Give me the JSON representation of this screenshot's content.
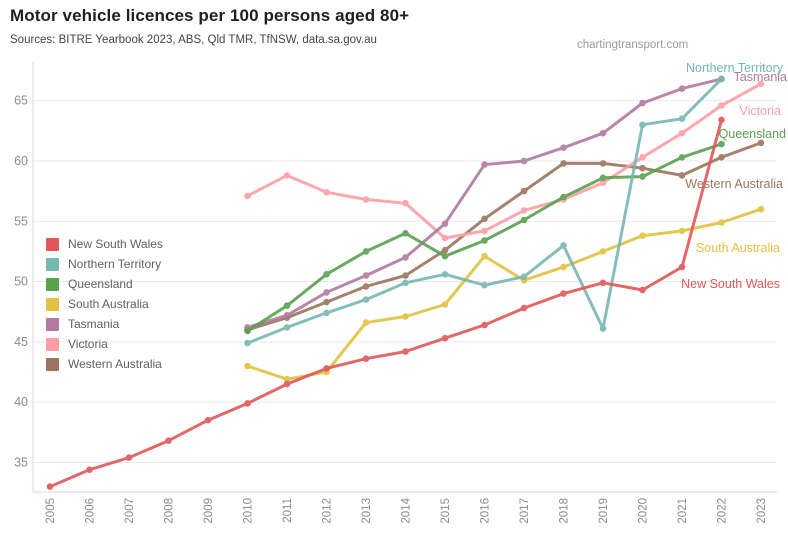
{
  "header": {
    "title": "Motor vehicle licences per 100 persons aged 80+",
    "subtitle": "Sources: BITRE Yearbook 2023, ABS, Qld TMR, TfNSW, data.sa.gov.au",
    "watermark": "chartingtransport.com"
  },
  "chart_data": {
    "type": "line",
    "title": "Motor vehicle licences per 100 persons aged 80+",
    "xlabel": "",
    "ylabel": "",
    "x_ticks": [
      2005,
      2006,
      2007,
      2008,
      2009,
      2010,
      2011,
      2012,
      2013,
      2014,
      2015,
      2016,
      2017,
      2018,
      2019,
      2020,
      2021,
      2022,
      2023
    ],
    "y_ticks": [
      35,
      40,
      45,
      50,
      55,
      60,
      65
    ],
    "xlim": [
      2005,
      2023
    ],
    "ylim": [
      32.5,
      67.2
    ],
    "grid": "horizontal",
    "legend_position": "center-left",
    "marker": "circle",
    "series": [
      {
        "name": "New South Wales",
        "color": "#e15759",
        "years": [
          2005,
          2006,
          2007,
          2008,
          2009,
          2010,
          2011,
          2012,
          2013,
          2014,
          2015,
          2016,
          2017,
          2018,
          2019,
          2020,
          2021,
          2022
        ],
        "values": [
          33.0,
          34.4,
          35.4,
          36.8,
          38.5,
          39.9,
          41.5,
          42.8,
          43.6,
          44.2,
          45.3,
          46.4,
          47.8,
          49.0,
          49.9,
          49.3,
          51.2,
          63.4
        ]
      },
      {
        "name": "Northern Territory",
        "color": "#76b7b2",
        "years": [
          2010,
          2011,
          2012,
          2013,
          2014,
          2015,
          2016,
          2017,
          2018,
          2019,
          2020,
          2021,
          2022
        ],
        "values": [
          44.9,
          46.2,
          47.4,
          48.5,
          49.9,
          50.6,
          49.7,
          50.4,
          53.0,
          46.1,
          63.0,
          63.5,
          66.8
        ]
      },
      {
        "name": "Queensland",
        "color": "#59a14f",
        "years": [
          2010,
          2011,
          2012,
          2013,
          2014,
          2015,
          2016,
          2017,
          2018,
          2019,
          2020,
          2021,
          2022
        ],
        "values": [
          45.9,
          48.0,
          50.6,
          52.5,
          54.0,
          52.1,
          53.4,
          55.1,
          57.0,
          58.6,
          58.7,
          60.3,
          61.4
        ]
      },
      {
        "name": "South Australia",
        "color": "#e2c23f",
        "years": [
          2010,
          2011,
          2012,
          2013,
          2014,
          2015,
          2016,
          2017,
          2018,
          2019,
          2020,
          2021,
          2022,
          2023
        ],
        "values": [
          43.0,
          41.9,
          42.5,
          46.6,
          47.1,
          48.1,
          52.1,
          50.1,
          51.2,
          52.5,
          53.8,
          54.2,
          54.9,
          56.0
        ]
      },
      {
        "name": "Tasmania",
        "color": "#b07aa1",
        "years": [
          2010,
          2011,
          2012,
          2013,
          2014,
          2015,
          2016,
          2017,
          2018,
          2019,
          2020,
          2021,
          2022
        ],
        "values": [
          46.2,
          47.2,
          49.1,
          50.5,
          52.0,
          54.8,
          59.7,
          60.0,
          61.1,
          62.3,
          64.8,
          66.0,
          66.8
        ]
      },
      {
        "name": "Victoria",
        "color": "#ff9da7",
        "years": [
          2010,
          2011,
          2012,
          2013,
          2014,
          2015,
          2016,
          2017,
          2018,
          2019,
          2020,
          2021,
          2022,
          2023
        ],
        "values": [
          57.1,
          58.8,
          57.4,
          56.8,
          56.5,
          53.6,
          54.2,
          55.9,
          56.8,
          58.2,
          60.3,
          62.3,
          64.6,
          66.4
        ]
      },
      {
        "name": "Western Australia",
        "color": "#9c755f",
        "years": [
          2010,
          2011,
          2012,
          2013,
          2014,
          2015,
          2016,
          2017,
          2018,
          2019,
          2020,
          2021,
          2022,
          2023
        ],
        "values": [
          46.0,
          47.0,
          48.3,
          49.6,
          50.5,
          52.6,
          55.2,
          57.5,
          59.8,
          59.8,
          59.4,
          58.8,
          60.3,
          61.5
        ]
      }
    ]
  }
}
